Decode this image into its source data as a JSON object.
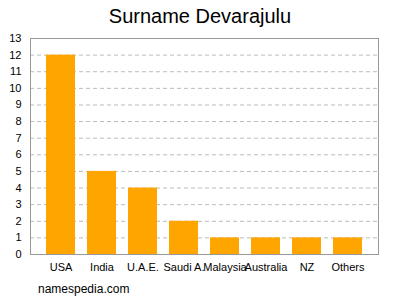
{
  "chart_data": {
    "type": "bar",
    "title": "Surname Devarajulu",
    "categories": [
      "USA",
      "India",
      "U.A.E.",
      "Saudi A.",
      "Malaysia",
      "Australia",
      "NZ",
      "Others"
    ],
    "values": [
      12,
      5,
      4,
      2,
      1,
      1,
      1,
      1
    ],
    "color": "#ffa500",
    "ylim": [
      0,
      13
    ],
    "yticks": [
      0,
      1,
      2,
      3,
      4,
      5,
      6,
      7,
      8,
      9,
      10,
      11,
      12,
      13
    ],
    "grid": true,
    "caption": "namespedia.com"
  }
}
